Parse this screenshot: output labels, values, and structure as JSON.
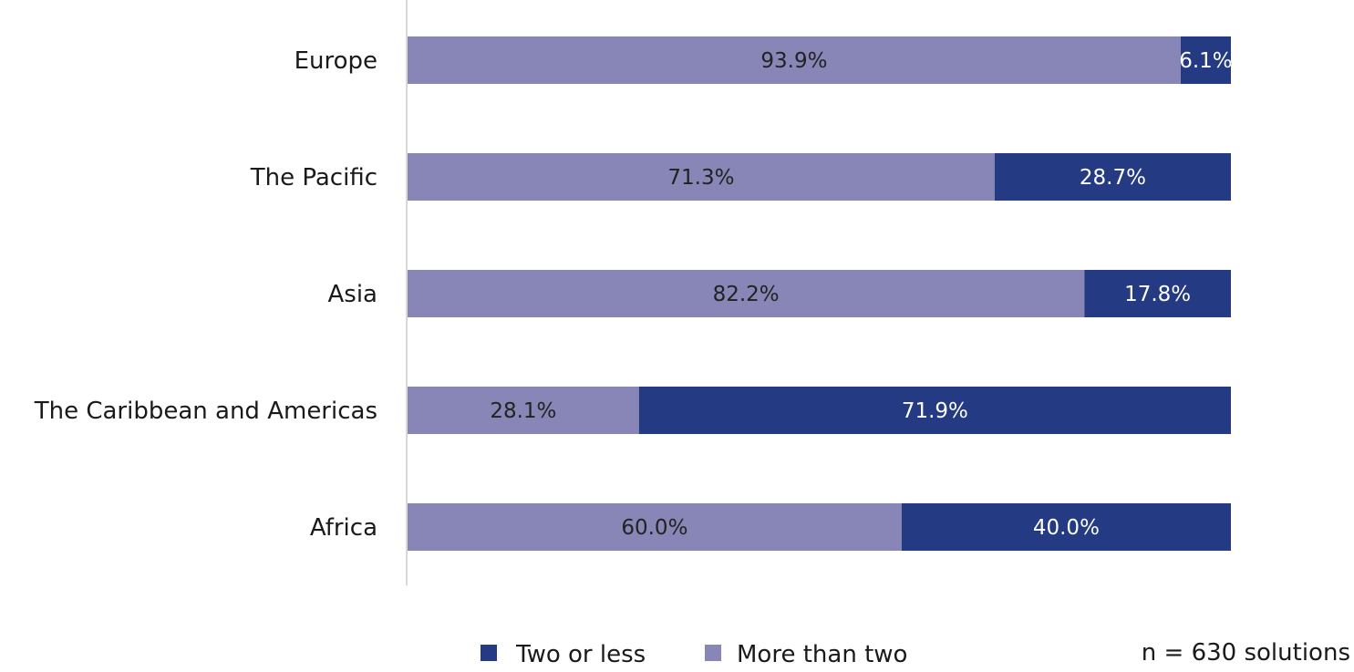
{
  "chart_data": {
    "type": "bar",
    "orientation": "horizontal",
    "stacked": true,
    "categories": [
      "Europe",
      "The Pacific",
      "Asia",
      "The Caribbean and Americas",
      "Africa"
    ],
    "series": [
      {
        "name": "More than two",
        "color": "#8886b6",
        "values": [
          93.9,
          71.3,
          82.2,
          28.1,
          60.0
        ],
        "labels": [
          "93.9%",
          "71.3%",
          "82.2%",
          "28.1%",
          "60.0%"
        ]
      },
      {
        "name": "Two or less",
        "color": "#243b84",
        "values": [
          6.1,
          28.7,
          17.8,
          71.9,
          40.0
        ],
        "labels": [
          "6.1%",
          "28.7%",
          "17.8%",
          "71.9%",
          "40.0%"
        ]
      }
    ],
    "xlim": [
      0,
      100
    ],
    "grid": false,
    "legend": {
      "position": "bottom",
      "order": [
        "Two or less",
        "More than two"
      ]
    },
    "note": "n = 630 solutions"
  }
}
